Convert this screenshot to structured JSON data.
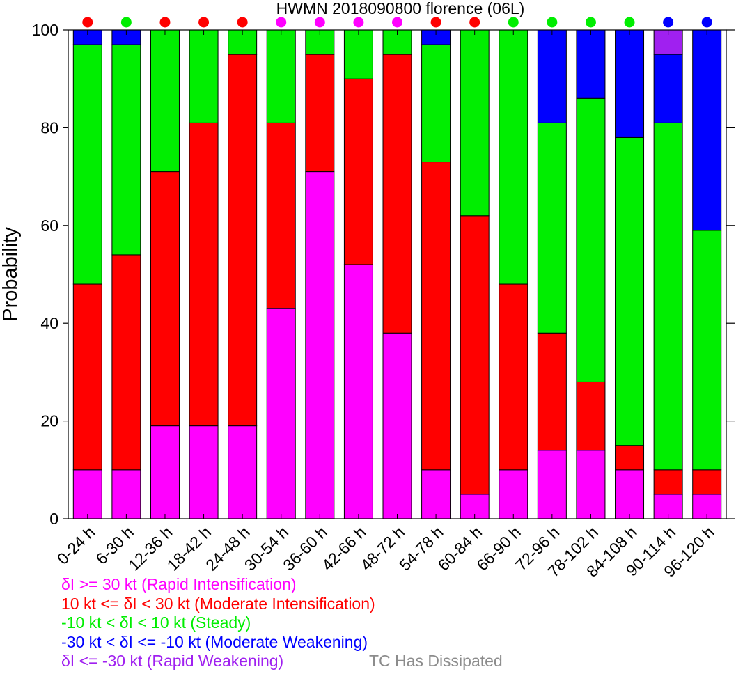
{
  "chart_data": {
    "type": "bar",
    "stacked": true,
    "title": "HWMN 2018090800 florence (06L)",
    "ylabel": "Probability",
    "ylim": [
      0,
      100
    ],
    "yticks": [
      0,
      20,
      40,
      60,
      80,
      100
    ],
    "categories": [
      "0-24 h",
      "6-30 h",
      "12-36 h",
      "18-42 h",
      "24-48 h",
      "30-54 h",
      "36-60 h",
      "42-66 h",
      "48-72 h",
      "54-78 h",
      "60-84 h",
      "66-90 h",
      "72-96 h",
      "78-102 h",
      "84-108 h",
      "90-114 h",
      "96-120 h"
    ],
    "series": [
      {
        "key": "ri",
        "color": "#ff00ff",
        "values": [
          10,
          10,
          19,
          19,
          19,
          43,
          71,
          52,
          38,
          10,
          5,
          10,
          14,
          14,
          10,
          5,
          5
        ]
      },
      {
        "key": "mi",
        "color": "#ff0000",
        "values": [
          38,
          44,
          52,
          62,
          76,
          38,
          24,
          38,
          57,
          63,
          57,
          38,
          24,
          14,
          5,
          5,
          5
        ]
      },
      {
        "key": "st",
        "color": "#00ee00",
        "values": [
          49,
          43,
          29,
          19,
          5,
          19,
          5,
          10,
          5,
          24,
          38,
          52,
          43,
          58,
          63,
          71,
          49
        ]
      },
      {
        "key": "mw",
        "color": "#0000ff",
        "values": [
          3,
          3,
          0,
          0,
          0,
          0,
          0,
          0,
          0,
          3,
          0,
          0,
          19,
          14,
          22,
          14,
          41
        ]
      },
      {
        "key": "rw",
        "color": "#a020f0",
        "values": [
          0,
          0,
          0,
          0,
          0,
          0,
          0,
          0,
          0,
          0,
          0,
          0,
          0,
          0,
          0,
          5,
          0
        ]
      }
    ],
    "dominant_dot_colors": [
      "#ff0000",
      "#00ee00",
      "#ff0000",
      "#ff0000",
      "#ff0000",
      "#ff00ff",
      "#ff00ff",
      "#ff00ff",
      "#ff00ff",
      "#ff0000",
      "#ff0000",
      "#00ee00",
      "#00ee00",
      "#00ee00",
      "#00ee00",
      "#0000ff",
      "#0000ff"
    ],
    "grid": false
  },
  "legend": {
    "items": [
      {
        "text": "δI >= 30 kt (Rapid Intensification)",
        "color": "#ff00ff"
      },
      {
        "text": "10 kt <= δI < 30 kt (Moderate Intensification)",
        "color": "#ff0000"
      },
      {
        "text": "-10 kt < δI < 10 kt (Steady)",
        "color": "#00ee00"
      },
      {
        "text": "-30 kt < δI <= -10 kt (Moderate Weakening)",
        "color": "#0000ff"
      },
      {
        "text": "δI <= -30 kt (Rapid Weakening)",
        "color": "#a020f0"
      }
    ],
    "dissipated": {
      "text": "TC Has Dissipated",
      "color": "#8c8c8c"
    }
  }
}
